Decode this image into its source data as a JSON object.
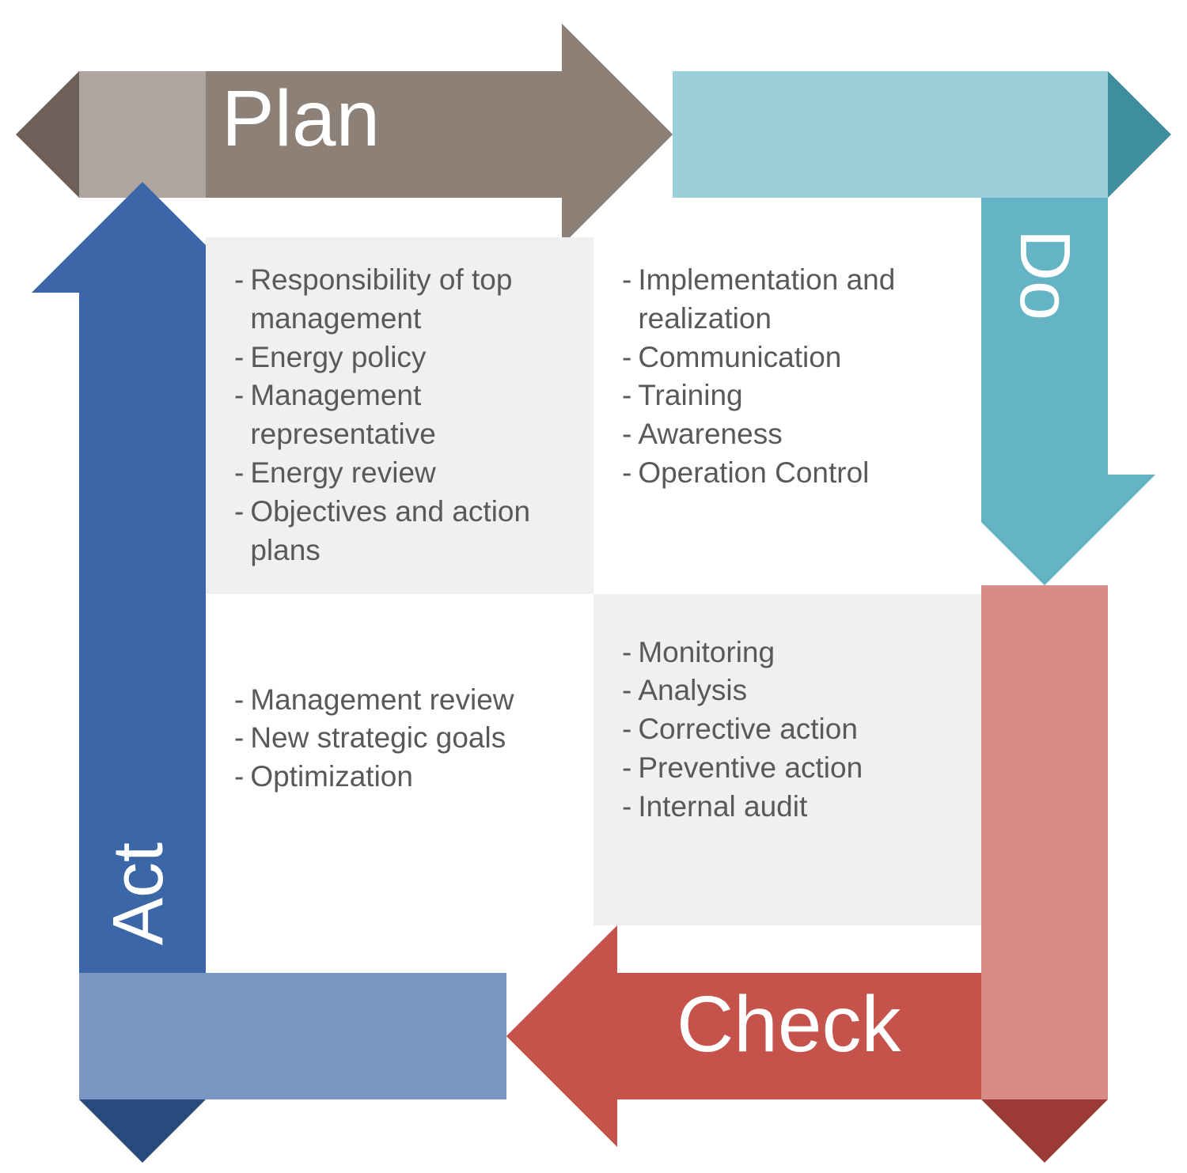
{
  "diagram": {
    "type": "cycle-square-arrows",
    "background_color": "#ffffff",
    "content_text_color": "#595959",
    "content_fontsize": 37,
    "label_color": "#ffffff",
    "quadrant_bg_shaded": "#f0f0f0",
    "quadrant_bg_plain": "#ffffff",
    "arrows": {
      "plan": {
        "label": "Plan",
        "fontsize": 100,
        "main_color": "#8d8077",
        "light_color": "#b0a69f",
        "shadow_color": "#6c6058"
      },
      "do": {
        "label": "Do",
        "fontsize": 90,
        "main_color": "#65b4c5",
        "light_color": "#9bcfda",
        "shadow_color": "#3e8ea0"
      },
      "check": {
        "label": "Check",
        "fontsize": 100,
        "main_color": "#c6524c",
        "light_color": "#d98b87",
        "shadow_color": "#9e3a35"
      },
      "act": {
        "label": "Act",
        "fontsize": 90,
        "main_color": "#3b67a8",
        "light_color": "#7a97c4",
        "shadow_color": "#284a7c"
      }
    },
    "quadrants": {
      "plan": {
        "items": [
          "Responsibility of top management",
          "Energy policy",
          "Management representative",
          "Energy review",
          "Objectives and action plans"
        ]
      },
      "do": {
        "items": [
          "Implementation and realization",
          "Communication",
          "Training",
          "Awareness",
          "Operation Control"
        ]
      },
      "check": {
        "items": [
          "Monitoring",
          "Analysis",
          "Corrective action",
          "Preventive action",
          "Internal audit"
        ]
      },
      "act": {
        "items": [
          "Management review",
          "New strategic goals",
          "Optimization"
        ]
      }
    }
  }
}
